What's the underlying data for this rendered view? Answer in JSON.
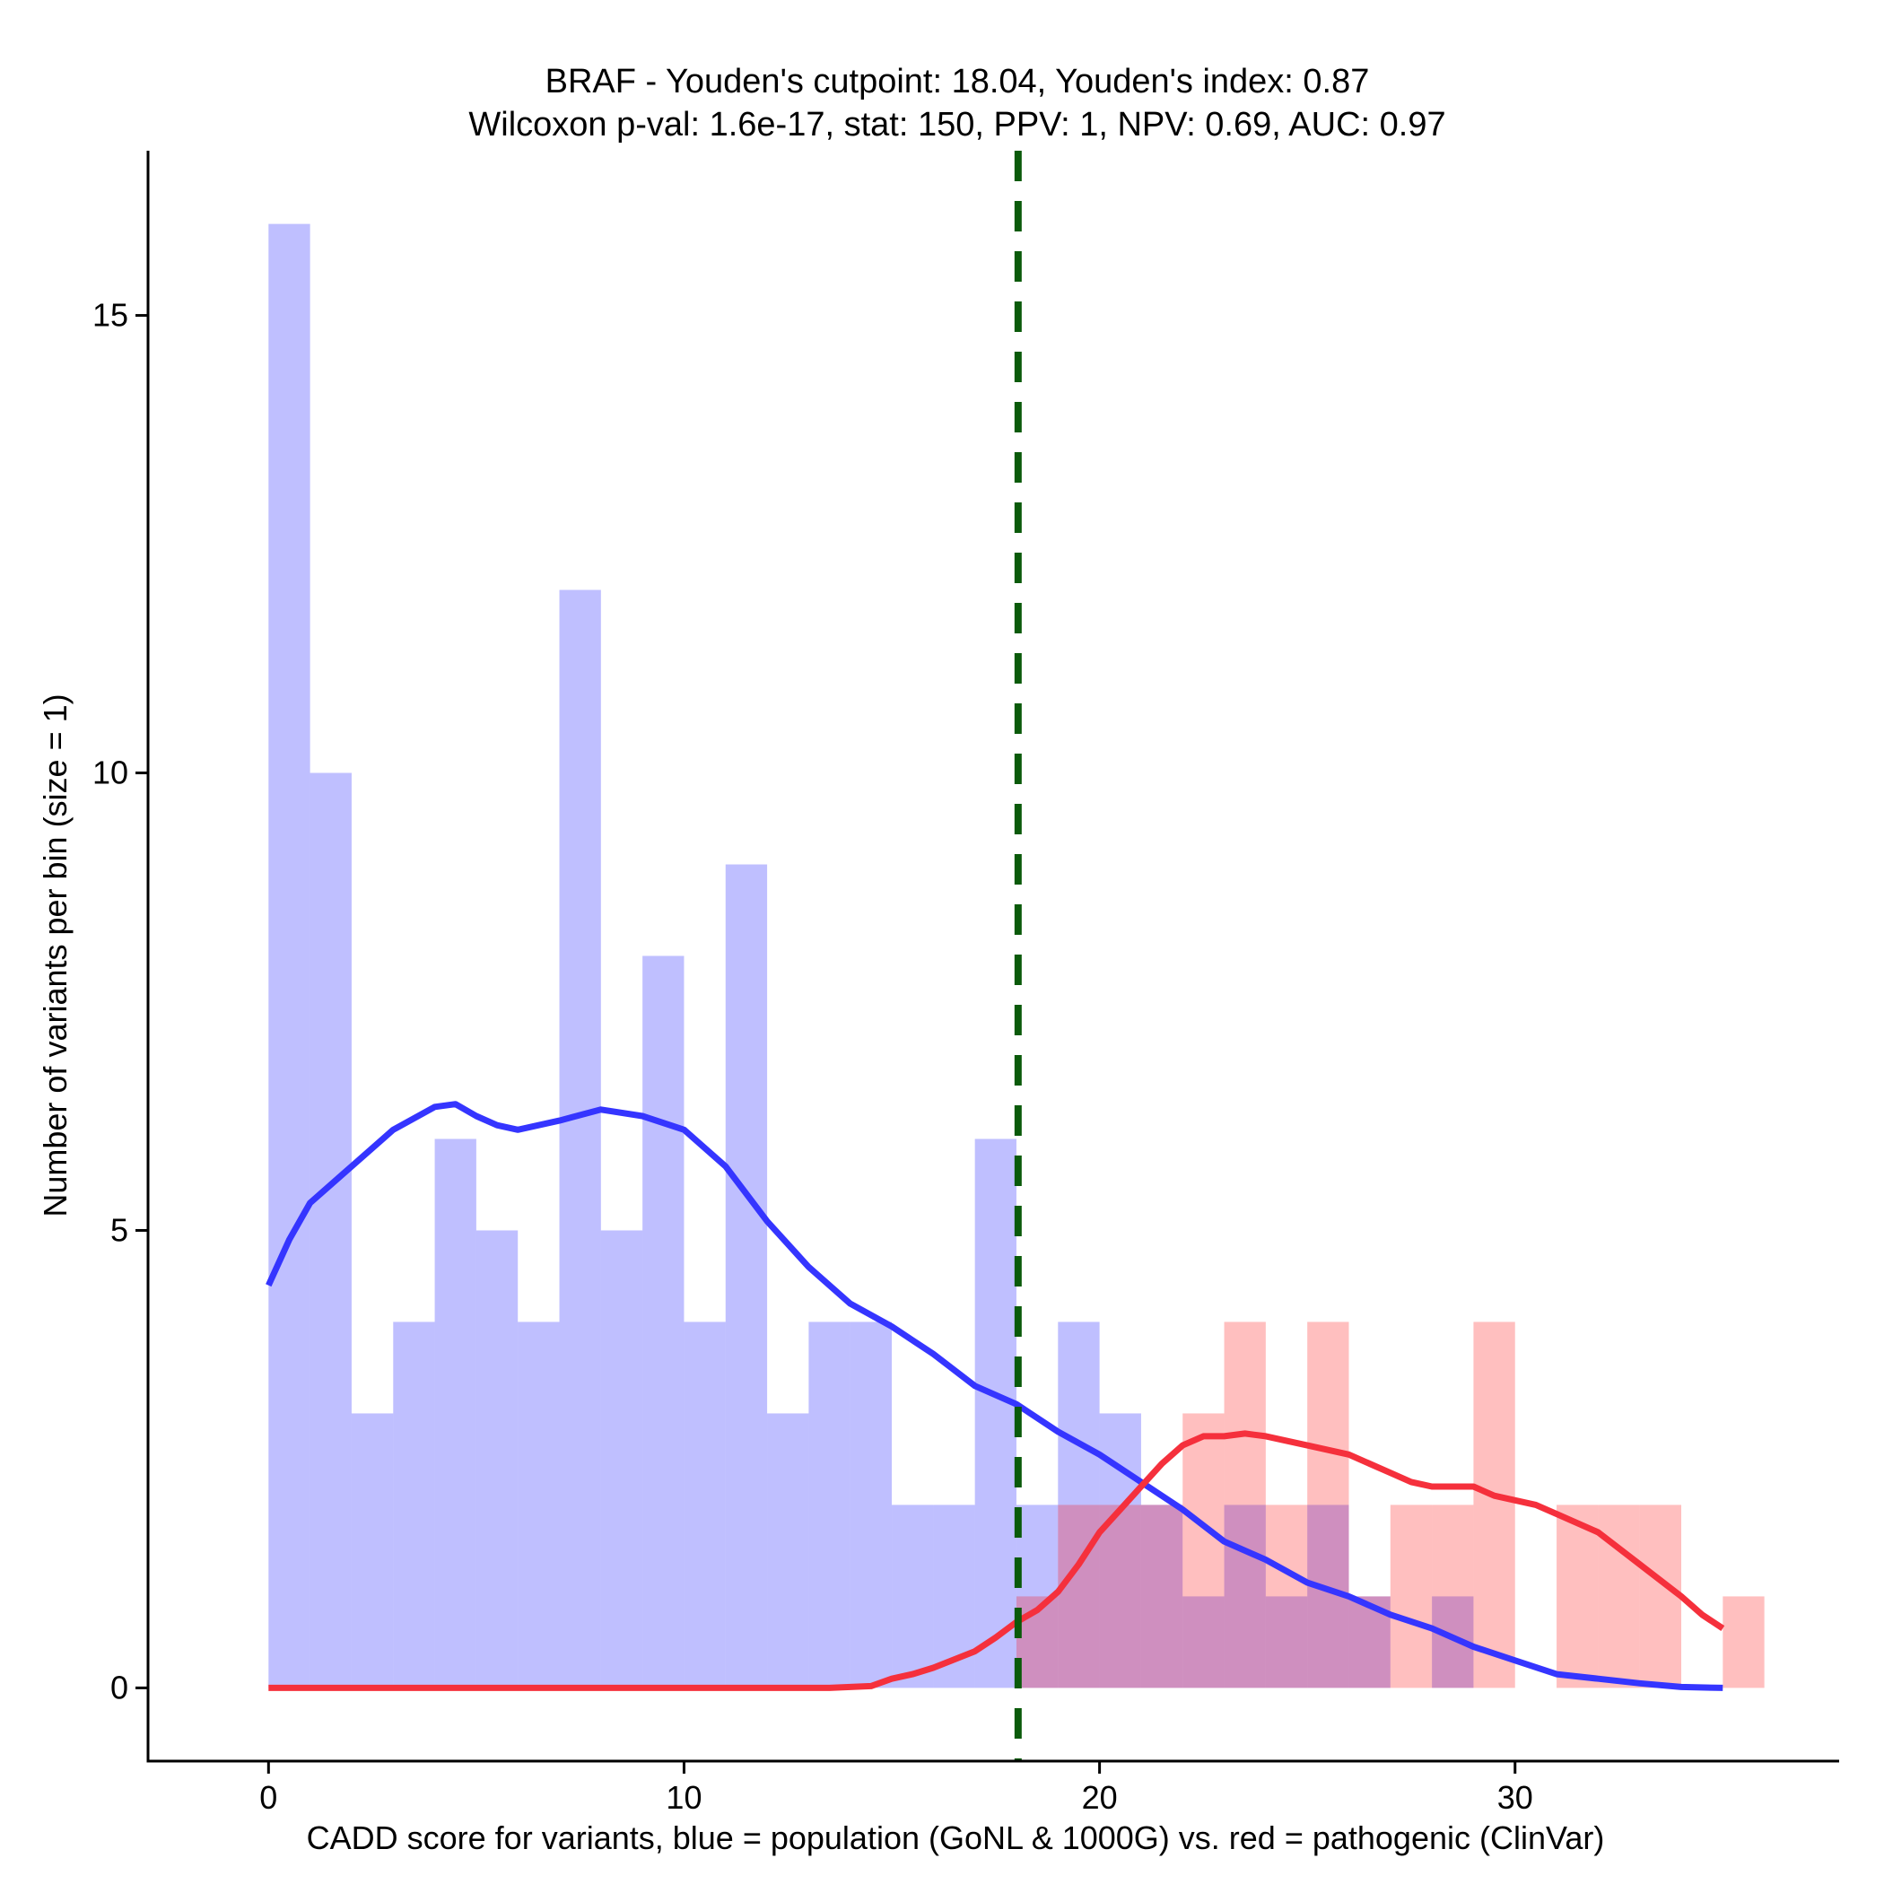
{
  "chart_data": {
    "type": "histogram",
    "title": "BRAF - Youden's cutpoint: 18.04, Youden's index: 0.87",
    "subtitle": "Wilcoxon p-val: 1.6e-17, stat: 150, PPV: 1, NPV: 0.69, AUC: 0.97",
    "xlabel": "CADD score for variants, blue = population (GoNL & 1000G) vs. red = pathogenic (ClinVar)",
    "ylabel": "Number of variants per bin (size = 1)",
    "xlim": [
      -2.9,
      37.8
    ],
    "ylim": [
      -0.8,
      16.8
    ],
    "xticks": [
      0,
      10,
      20,
      30
    ],
    "yticks": [
      0,
      5,
      10,
      15
    ],
    "bin_width": 1,
    "cutpoint": 18.04,
    "series": [
      {
        "name": "population (GoNL & 1000G)",
        "color": "#0000ff",
        "bin_starts": [
          0,
          1,
          2,
          3,
          4,
          5,
          6,
          7,
          8,
          9,
          10,
          11,
          12,
          13,
          14,
          15,
          16,
          17,
          18,
          19,
          20,
          21,
          22,
          23,
          24,
          25,
          26,
          27,
          28,
          29,
          30,
          31,
          32,
          33,
          34
        ],
        "counts": [
          16,
          10,
          3,
          4,
          6,
          5,
          4,
          12,
          5,
          8,
          4,
          9,
          3,
          4,
          4,
          2,
          2,
          6,
          2,
          4,
          3,
          2,
          1,
          2,
          1,
          2,
          1,
          0,
          1,
          0,
          0,
          0,
          0,
          0,
          0
        ],
        "density_curve": [
          [
            0,
            4.4
          ],
          [
            0.5,
            4.9
          ],
          [
            1,
            5.3
          ],
          [
            2,
            5.7
          ],
          [
            3,
            6.1
          ],
          [
            4,
            6.35
          ],
          [
            4.5,
            6.38
          ],
          [
            5,
            6.25
          ],
          [
            5.5,
            6.15
          ],
          [
            6,
            6.1
          ],
          [
            7,
            6.2
          ],
          [
            8,
            6.32
          ],
          [
            9,
            6.25
          ],
          [
            10,
            6.1
          ],
          [
            11,
            5.7
          ],
          [
            12,
            5.1
          ],
          [
            13,
            4.6
          ],
          [
            14,
            4.2
          ],
          [
            15,
            3.95
          ],
          [
            16,
            3.65
          ],
          [
            17,
            3.3
          ],
          [
            18,
            3.1
          ],
          [
            19,
            2.8
          ],
          [
            20,
            2.55
          ],
          [
            21,
            2.25
          ],
          [
            22,
            1.95
          ],
          [
            23,
            1.6
          ],
          [
            24,
            1.4
          ],
          [
            25,
            1.15
          ],
          [
            26,
            1.0
          ],
          [
            27,
            0.8
          ],
          [
            28,
            0.65
          ],
          [
            29,
            0.45
          ],
          [
            30,
            0.3
          ],
          [
            31,
            0.15
          ],
          [
            32,
            0.1
          ],
          [
            33,
            0.05
          ],
          [
            34,
            0.01
          ],
          [
            35,
            0.0
          ]
        ]
      },
      {
        "name": "pathogenic (ClinVar)",
        "color": "#ff0000",
        "bin_starts": [
          18,
          19,
          20,
          21,
          22,
          23,
          24,
          25,
          26,
          27,
          28,
          29,
          30,
          31,
          32,
          33,
          34,
          35
        ],
        "counts": [
          1,
          2,
          2,
          2,
          3,
          4,
          2,
          4,
          1,
          2,
          2,
          4,
          0,
          2,
          2,
          2,
          0,
          1
        ],
        "density_curve": [
          [
            0,
            0
          ],
          [
            5,
            0
          ],
          [
            10,
            0
          ],
          [
            13.5,
            0
          ],
          [
            14.5,
            0.02
          ],
          [
            15,
            0.1
          ],
          [
            15.5,
            0.15
          ],
          [
            16,
            0.22
          ],
          [
            17,
            0.4
          ],
          [
            17.5,
            0.55
          ],
          [
            18,
            0.72
          ],
          [
            18.5,
            0.85
          ],
          [
            19,
            1.05
          ],
          [
            19.5,
            1.35
          ],
          [
            20,
            1.7
          ],
          [
            20.5,
            1.95
          ],
          [
            21,
            2.2
          ],
          [
            21.5,
            2.45
          ],
          [
            22,
            2.65
          ],
          [
            22.5,
            2.75
          ],
          [
            23,
            2.75
          ],
          [
            23.5,
            2.78
          ],
          [
            24,
            2.75
          ],
          [
            25,
            2.65
          ],
          [
            26,
            2.55
          ],
          [
            26.5,
            2.45
          ],
          [
            27,
            2.35
          ],
          [
            27.5,
            2.25
          ],
          [
            28,
            2.2
          ],
          [
            28.5,
            2.2
          ],
          [
            29,
            2.2
          ],
          [
            29.5,
            2.1
          ],
          [
            30,
            2.05
          ],
          [
            30.5,
            2.0
          ],
          [
            31,
            1.9
          ],
          [
            32,
            1.7
          ],
          [
            33,
            1.35
          ],
          [
            34,
            1.0
          ],
          [
            34.5,
            0.8
          ],
          [
            35,
            0.65
          ]
        ]
      }
    ]
  }
}
